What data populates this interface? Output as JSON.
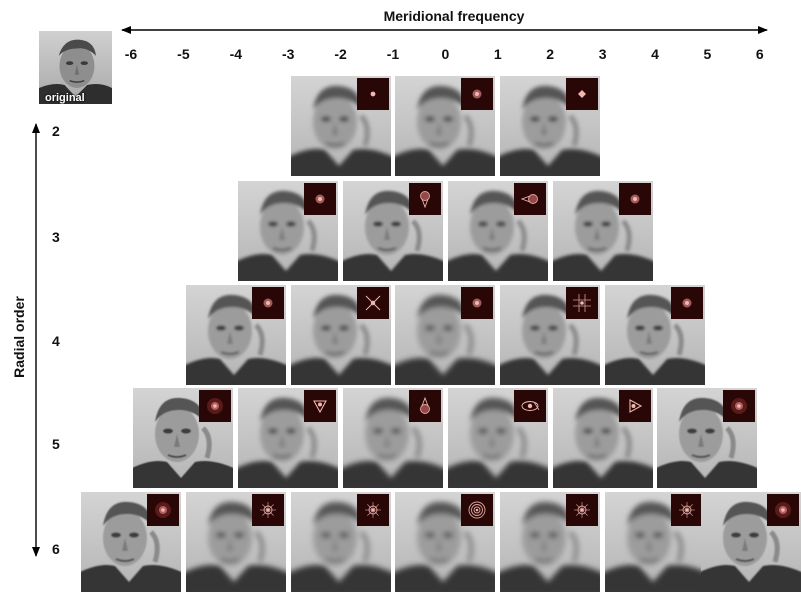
{
  "x_axis": {
    "title": "Meridional frequency",
    "ticks": [
      "-6",
      "-5",
      "-4",
      "-3",
      "-2",
      "-1",
      "0",
      "1",
      "2",
      "3",
      "4",
      "5",
      "6"
    ]
  },
  "y_axis": {
    "title": "Radial order",
    "ticks": [
      "2",
      "3",
      "4",
      "5",
      "6"
    ]
  },
  "original": {
    "label": "original"
  },
  "rows": [
    {
      "radial_order": 2,
      "meridional": [
        -2,
        0,
        2
      ],
      "psf": [
        "dot",
        "ring-dot",
        "diamond"
      ],
      "blur": [
        2.2,
        2.4,
        2.2
      ]
    },
    {
      "radial_order": 3,
      "meridional": [
        -3,
        -1,
        1,
        3
      ],
      "psf": [
        "ring-dot",
        "teardrop-down",
        "teardrop-left",
        "ring-dot"
      ],
      "blur": [
        1.6,
        1.2,
        1.8,
        1.6
      ]
    },
    {
      "radial_order": 4,
      "meridional": [
        -4,
        -2,
        0,
        2,
        4
      ],
      "psf": [
        "ring-dot",
        "cross",
        "ring-dot",
        "grid",
        "ring-dot"
      ],
      "blur": [
        1.2,
        2.2,
        2.6,
        1.8,
        1.3
      ]
    },
    {
      "radial_order": 5,
      "meridional": [
        -5,
        -3,
        -1,
        1,
        3,
        5
      ],
      "psf": [
        "glow",
        "triangle-down",
        "teardrop-up",
        "eye",
        "triangle-right",
        "glow"
      ],
      "blur": [
        0.6,
        2.4,
        2.6,
        2.6,
        2.4,
        0.7
      ]
    },
    {
      "radial_order": 6,
      "meridional": [
        -6,
        -4,
        -2,
        0,
        2,
        4,
        6
      ],
      "psf": [
        "glow",
        "star",
        "star",
        "rings",
        "star",
        "star",
        "glow"
      ],
      "blur": [
        0.9,
        2.6,
        2.8,
        3.0,
        2.8,
        2.6,
        0.9
      ]
    }
  ],
  "colors": {
    "psf_background": "#2a0707",
    "psf_light": "#f0b8b0"
  }
}
